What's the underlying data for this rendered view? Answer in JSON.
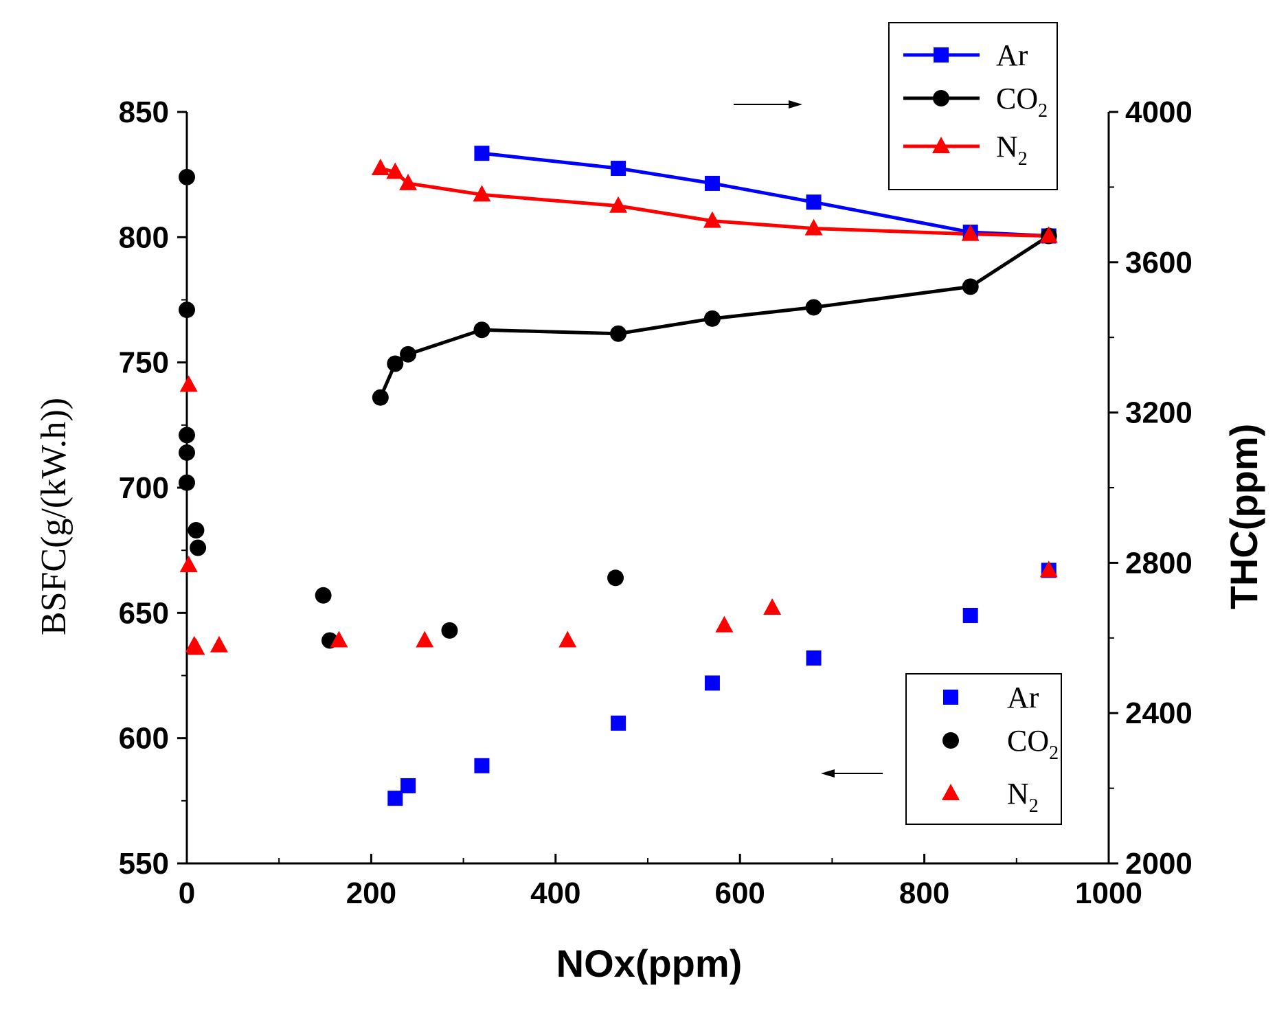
{
  "chart_data": {
    "type": "line",
    "xlabel": "NOx(ppm)",
    "ylabel_left": "BSFC(g/(kW.h))",
    "ylabel_right": "THC(ppm)",
    "xlim": [
      0,
      1000
    ],
    "ylim_left": [
      550,
      850
    ],
    "ylim_right": [
      2000,
      4000
    ],
    "x_ticks": [
      "0",
      "200",
      "400",
      "600",
      "800",
      "1000"
    ],
    "y_left_ticks": [
      "550",
      "600",
      "650",
      "700",
      "750",
      "800",
      "850"
    ],
    "y_right_ticks": [
      "2000",
      "2400",
      "2800",
      "3200",
      "3600",
      "4000"
    ],
    "grid": false,
    "legend_top": {
      "position": "top-right",
      "entries": [
        {
          "label": "Ar",
          "sub": ""
        },
        {
          "label": "CO",
          "sub": "2"
        },
        {
          "label": "N",
          "sub": "2"
        }
      ]
    },
    "legend_bottom": {
      "position": "bottom-right",
      "entries": [
        {
          "label": "Ar",
          "sub": ""
        },
        {
          "label": "CO",
          "sub": "2"
        },
        {
          "label": "N",
          "sub": "2"
        }
      ]
    },
    "colors": {
      "Ar": "#0000ff",
      "CO2": "#000000",
      "N2": "#ff0000"
    },
    "series_thc": [
      {
        "name": "Ar",
        "axis": "right",
        "marker": "square",
        "color": "#0000ff",
        "x": [
          320,
          468,
          570,
          680,
          850,
          935
        ],
        "y": [
          3890,
          3850,
          3810,
          3760,
          3680,
          3670
        ]
      },
      {
        "name": "CO2",
        "axis": "right",
        "marker": "circle",
        "color": "#000000",
        "x": [
          210,
          226,
          240,
          320,
          468,
          570,
          680,
          850,
          935
        ],
        "y": [
          3240,
          3330,
          3355,
          3420,
          3410,
          3450,
          3480,
          3535,
          3670
        ]
      },
      {
        "name": "N2",
        "axis": "right",
        "marker": "triangle",
        "color": "#ff0000",
        "x": [
          210,
          226,
          240,
          320,
          468,
          570,
          680,
          850,
          935
        ],
        "y": [
          3850,
          3840,
          3810,
          3780,
          3750,
          3710,
          3690,
          3675,
          3670
        ]
      }
    ],
    "series_bsfc": [
      {
        "name": "Ar",
        "axis": "left",
        "marker": "square",
        "color": "#0000ff",
        "x": [
          226,
          240,
          320,
          468,
          570,
          680,
          850,
          935
        ],
        "y": [
          576,
          581,
          589,
          606,
          622,
          632,
          649,
          667
        ]
      },
      {
        "name": "CO2",
        "axis": "left",
        "marker": "circle",
        "color": "#000000",
        "x": [
          0,
          0,
          0,
          0,
          0,
          10,
          12,
          148,
          155,
          285,
          465
        ],
        "y": [
          824,
          771,
          721,
          714,
          702,
          683,
          676,
          657,
          639,
          643,
          664
        ]
      },
      {
        "name": "N2",
        "axis": "left",
        "marker": "triangle",
        "color": "#ff0000",
        "x": [
          2,
          2,
          8,
          10,
          35,
          165,
          258,
          413,
          583,
          635,
          935
        ],
        "y": [
          741,
          669,
          637,
          636,
          637,
          639,
          639,
          639,
          645,
          652,
          667
        ]
      }
    ],
    "annotations": [
      {
        "text": "arrow pointing right",
        "target_axis": "right"
      },
      {
        "text": "arrow pointing left",
        "target_axis": "left"
      }
    ]
  }
}
